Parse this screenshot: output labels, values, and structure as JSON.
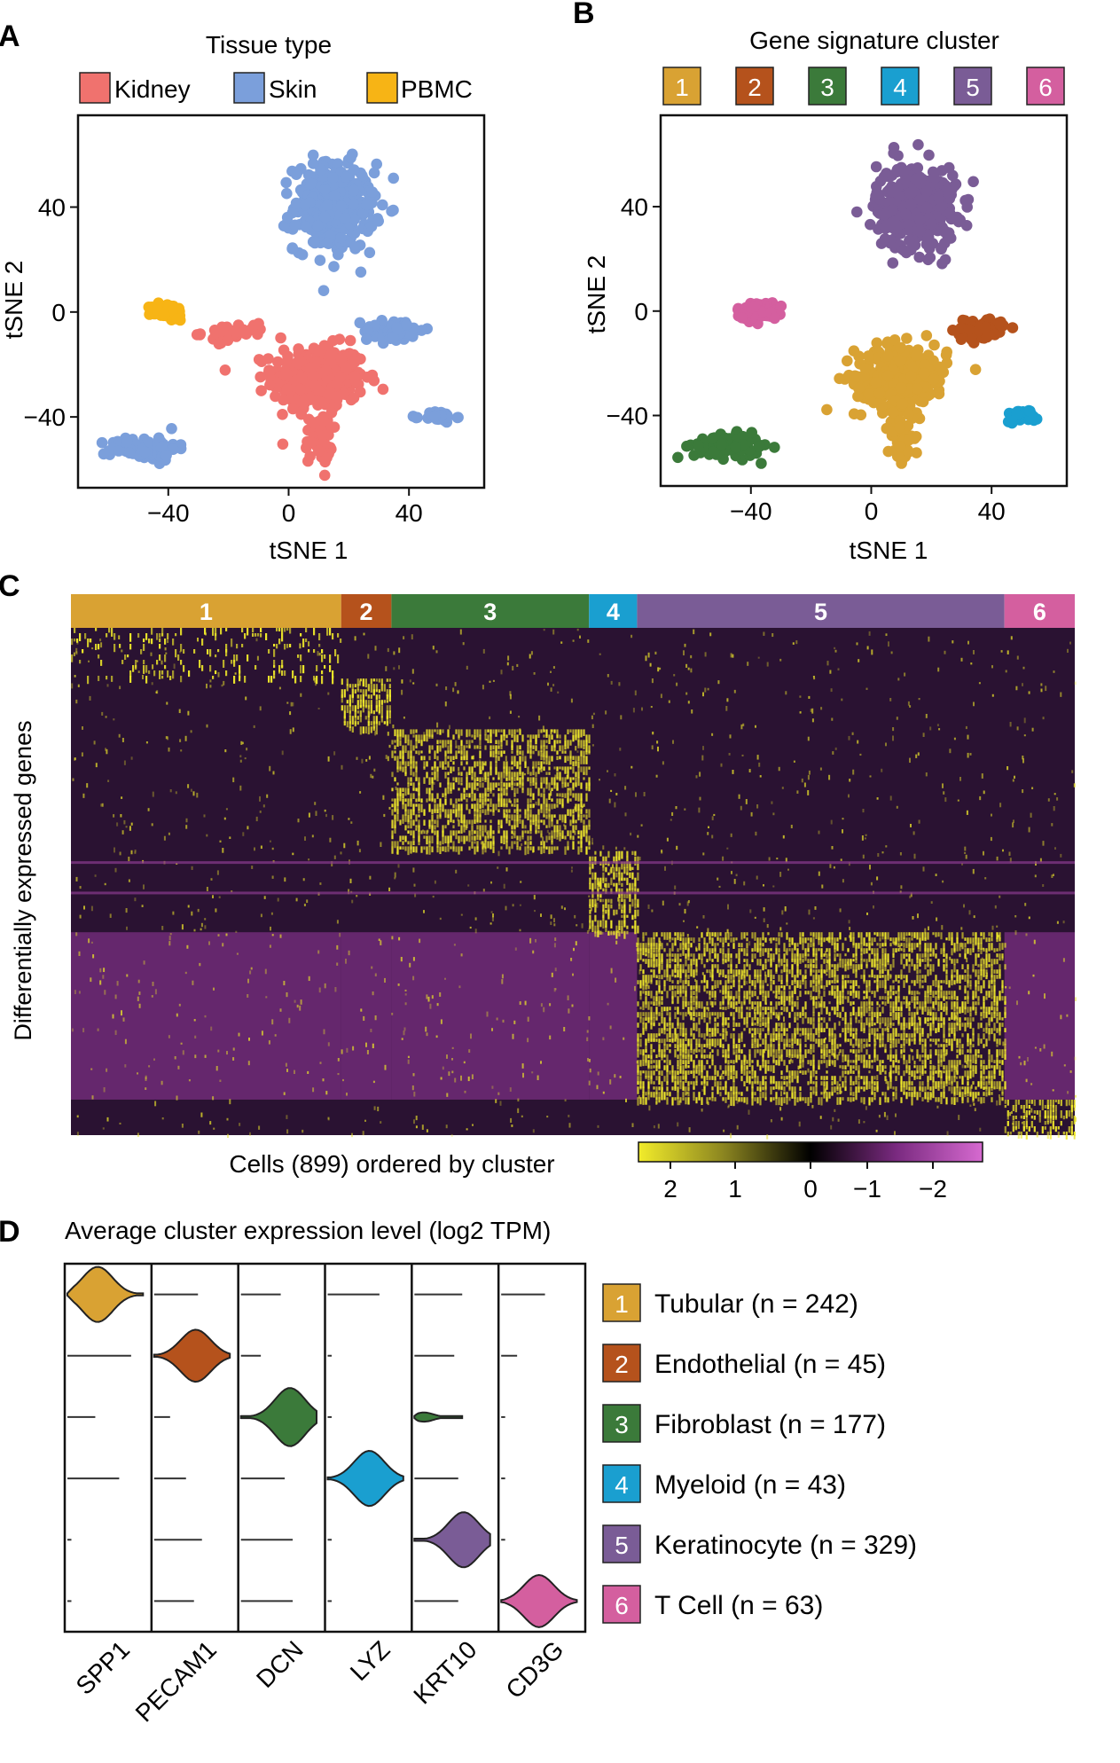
{
  "panel_labels": {
    "A": "A",
    "B": "B",
    "C": "C",
    "D": "D"
  },
  "colors": {
    "kidney": "#f0726e",
    "skin": "#7b9fdb",
    "pbmc": "#f7b415",
    "c1": "#d9a233",
    "c2": "#b5521c",
    "c3": "#3b7a3a",
    "c4": "#1a9fd0",
    "c5": "#7a5c96",
    "c6": "#d45f9f",
    "heat_bg": "#2a1232",
    "heat_hi": "#f2ec2a",
    "heat_lo": "#8a3a8f"
  },
  "chart_data": [
    {
      "type": "scatter",
      "panel": "A",
      "title": "Tissue type",
      "xlabel": "tSNE 1",
      "ylabel": "tSNE 2",
      "xlim": [
        -70,
        65
      ],
      "ylim": [
        -67,
        75
      ],
      "xticks": [
        -40,
        0,
        40
      ],
      "yticks": [
        -40,
        0,
        40
      ],
      "legend": "top",
      "legend_labels": [
        "Kidney",
        "Skin",
        "PBMC"
      ],
      "groups": [
        {
          "name": "Kidney",
          "color": "#f0726e",
          "regions": [
            {
              "cx": 10,
              "cy": -25,
              "sx": 14,
              "sy": 11,
              "n": 340
            },
            {
              "cx": 10,
              "cy": -48,
              "sx": 4,
              "sy": 9,
              "n": 60
            },
            {
              "cx": -18,
              "cy": -8,
              "sx": 10,
              "sy": 3,
              "n": 40
            }
          ]
        },
        {
          "name": "Skin",
          "color": "#7b9fdb",
          "regions": [
            {
              "cx": 15,
              "cy": 40,
              "sx": 12,
              "sy": 15,
              "n": 360
            },
            {
              "cx": -48,
              "cy": -52,
              "sx": 10,
              "sy": 4,
              "n": 95
            },
            {
              "cx": 35,
              "cy": -7,
              "sx": 9,
              "sy": 4,
              "n": 60
            },
            {
              "cx": 50,
              "cy": -40,
              "sx": 5,
              "sy": 2,
              "n": 28
            }
          ]
        },
        {
          "name": "PBMC",
          "color": "#f7b415",
          "regions": [
            {
              "cx": -40,
              "cy": 0,
              "sx": 5,
              "sy": 3,
              "n": 55
            }
          ]
        }
      ]
    },
    {
      "type": "scatter",
      "panel": "B",
      "title": "Gene signature cluster",
      "xlabel": "tSNE 1",
      "ylabel": "tSNE 2",
      "xlim": [
        -70,
        65
      ],
      "ylim": [
        -67,
        75
      ],
      "xticks": [
        -40,
        0,
        40
      ],
      "yticks": [
        -40,
        0,
        40
      ],
      "legend": "top",
      "legend_labels": [
        "1",
        "2",
        "3",
        "4",
        "5",
        "6"
      ],
      "groups": [
        {
          "name": "1",
          "color": "#d9a233",
          "regions": [
            {
              "cx": 10,
              "cy": -25,
              "sx": 14,
              "sy": 11,
              "n": 300
            },
            {
              "cx": 10,
              "cy": -48,
              "sx": 4,
              "sy": 9,
              "n": 60
            }
          ]
        },
        {
          "name": "2",
          "color": "#b5521c",
          "regions": [
            {
              "cx": 36,
              "cy": -7,
              "sx": 8,
              "sy": 4,
              "n": 70
            }
          ]
        },
        {
          "name": "3",
          "color": "#3b7a3a",
          "regions": [
            {
              "cx": -48,
              "cy": -52,
              "sx": 10,
              "sy": 4,
              "n": 110
            }
          ]
        },
        {
          "name": "4",
          "color": "#1a9fd0",
          "regions": [
            {
              "cx": 50,
              "cy": -40,
              "sx": 5,
              "sy": 2,
              "n": 40
            }
          ]
        },
        {
          "name": "5",
          "color": "#7a5c96",
          "regions": [
            {
              "cx": 15,
              "cy": 40,
              "sx": 12,
              "sy": 15,
              "n": 360
            }
          ]
        },
        {
          "name": "6",
          "color": "#d45f9f",
          "regions": [
            {
              "cx": -38,
              "cy": 0,
              "sx": 6,
              "sy": 3,
              "n": 60
            }
          ]
        }
      ]
    },
    {
      "type": "heatmap",
      "panel": "C",
      "xlabel": "Cells (899) ordered by cluster",
      "ylabel": "Differentially expressed genes",
      "clusters": [
        {
          "label": "1",
          "n_cells": 242,
          "color": "#d9a233"
        },
        {
          "label": "2",
          "n_cells": 45,
          "color": "#b5521c"
        },
        {
          "label": "3",
          "n_cells": 177,
          "color": "#3b7a3a"
        },
        {
          "label": "4",
          "n_cells": 43,
          "color": "#1a9fd0"
        },
        {
          "label": "5",
          "n_cells": 329,
          "color": "#7a5c96"
        },
        {
          "label": "6",
          "n_cells": 63,
          "color": "#d45f9f"
        }
      ],
      "gene_blocks": [
        {
          "cluster": "1",
          "gene_fraction": 0.1
        },
        {
          "cluster": "2",
          "gene_fraction": 0.1
        },
        {
          "cluster": "3",
          "gene_fraction": 0.24
        },
        {
          "cluster": "4",
          "gene_fraction": 0.16
        },
        {
          "cluster": "5",
          "gene_fraction": 0.33
        },
        {
          "cluster": "6",
          "gene_fraction": 0.07
        }
      ],
      "colorbar": {
        "ticks": [
          "2",
          "1",
          "0",
          "−1",
          "−2"
        ],
        "range": [
          2,
          -2
        ]
      }
    },
    {
      "type": "violin",
      "panel": "D",
      "title": "Average cluster expression level (log2 TPM)",
      "genes": [
        "SPP1",
        "PECAM1",
        "DCN",
        "LYZ",
        "KRT10",
        "CD3G"
      ],
      "clusters": [
        {
          "id": "1",
          "label": "Tubular (n = 242)",
          "color": "#d9a233"
        },
        {
          "id": "2",
          "label": "Endothelial (n = 45)",
          "color": "#b5521c"
        },
        {
          "id": "3",
          "label": "Fibroblast (n = 177)",
          "color": "#3b7a3a"
        },
        {
          "id": "4",
          "label": "Myeloid (n = 43)",
          "color": "#1a9fd0"
        },
        {
          "id": "5",
          "label": "Keratinocyte (n = 329)",
          "color": "#7a5c96"
        },
        {
          "id": "6",
          "label": "T Cell (n = 63)",
          "color": "#d45f9f"
        }
      ],
      "violins": [
        {
          "gene": "SPP1",
          "cluster": "1",
          "width": 0.95,
          "mode": 0.4,
          "height": 0.9,
          "filled": true
        },
        {
          "gene": "SPP1",
          "cluster": "2",
          "width": 0.8,
          "height": 0.08
        },
        {
          "gene": "SPP1",
          "cluster": "3",
          "width": 0.35,
          "height": 0.08
        },
        {
          "gene": "SPP1",
          "cluster": "4",
          "width": 0.65,
          "height": 0.08
        },
        {
          "gene": "SPP1",
          "cluster": "5",
          "width": 0.05,
          "height": 0.06
        },
        {
          "gene": "SPP1",
          "cluster": "6",
          "width": 0.05,
          "height": 0.06
        },
        {
          "gene": "PECAM1",
          "cluster": "1",
          "width": 0.55,
          "height": 0.08
        },
        {
          "gene": "PECAM1",
          "cluster": "2",
          "width": 0.95,
          "mode": 0.55,
          "height": 0.85,
          "filled": true
        },
        {
          "gene": "PECAM1",
          "cluster": "3",
          "width": 0.2,
          "height": 0.06
        },
        {
          "gene": "PECAM1",
          "cluster": "4",
          "width": 0.4,
          "height": 0.06
        },
        {
          "gene": "PECAM1",
          "cluster": "5",
          "width": 0.6,
          "height": 0.06
        },
        {
          "gene": "PECAM1",
          "cluster": "6",
          "width": 0.5,
          "height": 0.06
        },
        {
          "gene": "DCN",
          "cluster": "1",
          "width": 0.5,
          "height": 0.08
        },
        {
          "gene": "DCN",
          "cluster": "2",
          "width": 0.25,
          "height": 0.06
        },
        {
          "gene": "DCN",
          "cluster": "3",
          "width": 0.95,
          "mode": 0.65,
          "height": 0.95,
          "filled": true
        },
        {
          "gene": "DCN",
          "cluster": "4",
          "width": 0.55,
          "height": 0.08
        },
        {
          "gene": "DCN",
          "cluster": "5",
          "width": 0.65,
          "height": 0.06
        },
        {
          "gene": "DCN",
          "cluster": "6",
          "width": 0.65,
          "height": 0.06
        },
        {
          "gene": "LYZ",
          "cluster": "1",
          "width": 0.65,
          "height": 0.06
        },
        {
          "gene": "LYZ",
          "cluster": "2",
          "width": 0.05,
          "height": 0.06
        },
        {
          "gene": "LYZ",
          "cluster": "3",
          "width": 0.05,
          "height": 0.06
        },
        {
          "gene": "LYZ",
          "cluster": "4",
          "width": 0.95,
          "mode": 0.55,
          "height": 0.9,
          "filled": true
        },
        {
          "gene": "LYZ",
          "cluster": "5",
          "width": 0.05,
          "height": 0.06
        },
        {
          "gene": "LYZ",
          "cluster": "6",
          "width": 0.05,
          "height": 0.06
        },
        {
          "gene": "KRT10",
          "cluster": "1",
          "width": 0.6,
          "height": 0.06
        },
        {
          "gene": "KRT10",
          "cluster": "2",
          "width": 0.5,
          "height": 0.06
        },
        {
          "gene": "KRT10",
          "cluster": "3",
          "width": 0.6,
          "mode": 0.2,
          "height": 0.15,
          "filled": true
        },
        {
          "gene": "KRT10",
          "cluster": "4",
          "width": 0.55,
          "height": 0.06
        },
        {
          "gene": "KRT10",
          "cluster": "5",
          "width": 0.95,
          "mode": 0.65,
          "height": 0.9,
          "filled": true
        },
        {
          "gene": "KRT10",
          "cluster": "6",
          "width": 0.55,
          "height": 0.06
        },
        {
          "gene": "CD3G",
          "cluster": "1",
          "width": 0.55,
          "height": 0.06
        },
        {
          "gene": "CD3G",
          "cluster": "2",
          "width": 0.2,
          "height": 0.06
        },
        {
          "gene": "CD3G",
          "cluster": "3",
          "width": 0.05,
          "height": 0.06
        },
        {
          "gene": "CD3G",
          "cluster": "4",
          "width": 0.05,
          "height": 0.06
        },
        {
          "gene": "CD3G",
          "cluster": "5",
          "width": 0.05,
          "height": 0.06
        },
        {
          "gene": "CD3G",
          "cluster": "6",
          "width": 0.95,
          "mode": 0.5,
          "height": 0.85,
          "filled": true
        }
      ]
    }
  ]
}
